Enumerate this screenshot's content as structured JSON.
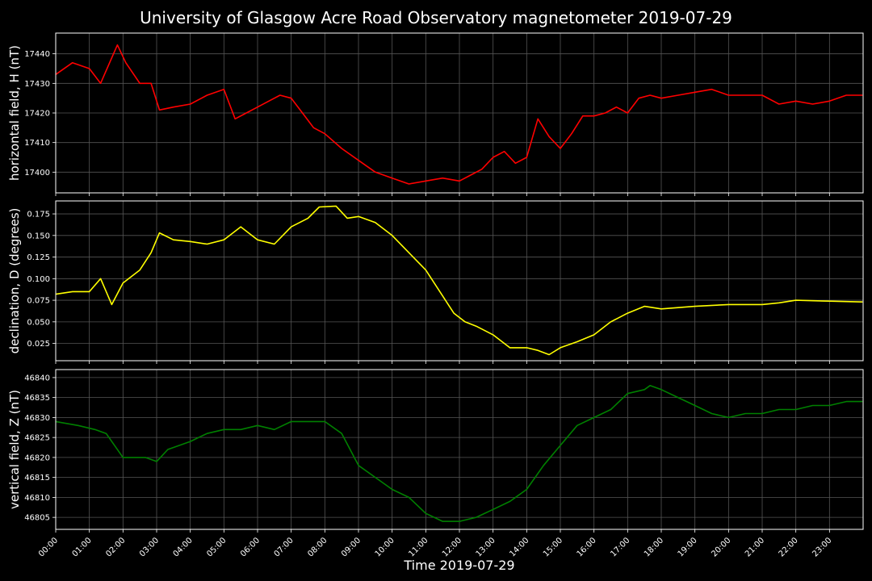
{
  "title": "University of Glasgow Acre Road Observatory magnetometer 2019-07-29",
  "xlabel": "Time 2019-07-29",
  "x_ticks": [
    "00:00",
    "01:00",
    "02:00",
    "03:00",
    "04:00",
    "05:00",
    "06:00",
    "07:00",
    "08:00",
    "09:00",
    "10:00",
    "11:00",
    "12:00",
    "13:00",
    "14:00",
    "15:00",
    "16:00",
    "17:00",
    "18:00",
    "19:00",
    "20:00",
    "21:00",
    "22:00",
    "23:00"
  ],
  "chart_data": [
    {
      "type": "line",
      "ylabel": "horizontal field, H (nT)",
      "color": "#ff0000",
      "ylim": [
        17393,
        17447
      ],
      "yticks": [
        17400,
        17410,
        17420,
        17430,
        17440
      ],
      "grid": true,
      "x": [
        "00:00",
        "00:30",
        "01:00",
        "01:20",
        "01:50",
        "02:05",
        "02:30",
        "02:50",
        "03:05",
        "03:30",
        "04:00",
        "04:30",
        "05:00",
        "05:20",
        "05:40",
        "06:00",
        "06:20",
        "06:40",
        "07:00",
        "07:20",
        "07:40",
        "08:00",
        "08:30",
        "09:00",
        "09:30",
        "10:00",
        "10:30",
        "11:00",
        "11:30",
        "12:00",
        "12:20",
        "12:40",
        "13:00",
        "13:20",
        "13:40",
        "14:00",
        "14:20",
        "14:40",
        "15:00",
        "15:20",
        "15:40",
        "16:00",
        "16:20",
        "16:40",
        "17:00",
        "17:20",
        "17:40",
        "18:00",
        "18:30",
        "19:00",
        "19:30",
        "20:00",
        "20:30",
        "21:00",
        "21:30",
        "22:00",
        "22:30",
        "23:00",
        "23:30",
        "23:59"
      ],
      "values": [
        17433,
        17437,
        17435,
        17430,
        17443,
        17437,
        17430,
        17430,
        17421,
        17422,
        17423,
        17426,
        17428,
        17418,
        17420,
        17422,
        17424,
        17426,
        17425,
        17420,
        17415,
        17413,
        17408,
        17404,
        17400,
        17398,
        17396,
        17397,
        17398,
        17397,
        17399,
        17401,
        17405,
        17407,
        17403,
        17405,
        17418,
        17412,
        17408,
        17413,
        17419,
        17419,
        17420,
        17422,
        17420,
        17425,
        17426,
        17425,
        17426,
        17427,
        17428,
        17426,
        17426,
        17426,
        17423,
        17424,
        17423,
        17424,
        17426,
        17426
      ]
    },
    {
      "type": "line",
      "ylabel": "declination, D (degrees)",
      "color": "#ffff00",
      "ylim": [
        0.005,
        0.19
      ],
      "yticks": [
        0.025,
        0.05,
        0.075,
        0.1,
        0.125,
        0.15,
        0.175
      ],
      "grid": true,
      "x": [
        "00:00",
        "00:30",
        "01:00",
        "01:20",
        "01:40",
        "02:00",
        "02:30",
        "02:50",
        "03:05",
        "03:30",
        "04:00",
        "04:30",
        "05:00",
        "05:30",
        "06:00",
        "06:30",
        "07:00",
        "07:30",
        "07:50",
        "08:20",
        "08:40",
        "09:00",
        "09:30",
        "10:00",
        "10:30",
        "11:00",
        "11:30",
        "11:50",
        "12:10",
        "12:30",
        "13:00",
        "13:30",
        "14:00",
        "14:20",
        "14:40",
        "15:00",
        "15:30",
        "16:00",
        "16:30",
        "17:00",
        "17:30",
        "18:00",
        "19:00",
        "20:00",
        "21:00",
        "21:30",
        "22:00",
        "23:00",
        "23:59"
      ],
      "values": [
        0.082,
        0.085,
        0.085,
        0.1,
        0.07,
        0.095,
        0.11,
        0.13,
        0.153,
        0.145,
        0.143,
        0.14,
        0.145,
        0.16,
        0.145,
        0.14,
        0.16,
        0.17,
        0.183,
        0.184,
        0.17,
        0.172,
        0.165,
        0.15,
        0.13,
        0.11,
        0.08,
        0.06,
        0.05,
        0.045,
        0.035,
        0.02,
        0.02,
        0.017,
        0.012,
        0.02,
        0.027,
        0.035,
        0.05,
        0.06,
        0.068,
        0.065,
        0.068,
        0.07,
        0.07,
        0.072,
        0.075,
        0.074,
        0.073
      ]
    },
    {
      "type": "line",
      "ylabel": "vertical field, Z (nT)",
      "color": "#008000",
      "ylim": [
        46802,
        46842
      ],
      "yticks": [
        46805,
        46810,
        46815,
        46820,
        46825,
        46830,
        46835,
        46840
      ],
      "grid": true,
      "x": [
        "00:00",
        "00:40",
        "01:10",
        "01:30",
        "02:00",
        "02:40",
        "03:00",
        "03:20",
        "04:00",
        "04:30",
        "05:00",
        "05:30",
        "06:00",
        "06:30",
        "07:00",
        "07:30",
        "08:00",
        "08:30",
        "09:00",
        "09:30",
        "10:00",
        "10:30",
        "11:00",
        "11:30",
        "12:00",
        "12:30",
        "13:00",
        "13:30",
        "14:00",
        "14:30",
        "15:00",
        "15:30",
        "16:00",
        "16:30",
        "17:00",
        "17:30",
        "17:40",
        "18:00",
        "18:30",
        "19:00",
        "19:30",
        "20:00",
        "20:30",
        "21:00",
        "21:30",
        "22:00",
        "22:30",
        "23:00",
        "23:30",
        "23:59"
      ],
      "values": [
        46829,
        46828,
        46827,
        46826,
        46820,
        46820,
        46819,
        46822,
        46824,
        46826,
        46827,
        46827,
        46828,
        46827,
        46829,
        46829,
        46829,
        46826,
        46818,
        46815,
        46812,
        46810,
        46806,
        46804,
        46804,
        46805,
        46807,
        46809,
        46812,
        46818,
        46823,
        46828,
        46830,
        46832,
        46836,
        46837,
        46838,
        46837,
        46835,
        46833,
        46831,
        46830,
        46831,
        46831,
        46832,
        46832,
        46833,
        46833,
        46834,
        46834
      ]
    }
  ]
}
